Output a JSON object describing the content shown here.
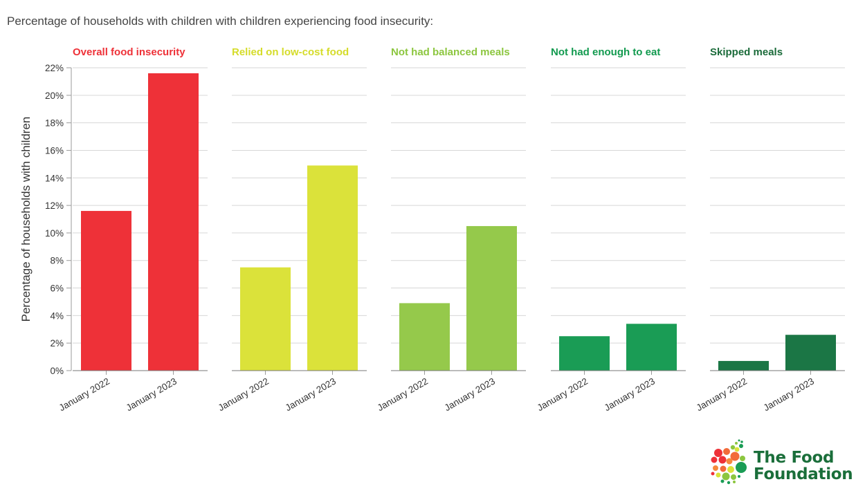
{
  "title": "Percentage of households with children with children experiencing food insecurity:",
  "logo": {
    "line1": "The Food",
    "line2": "Foundation"
  },
  "chart_data": {
    "type": "bar",
    "ylabel": "Percentage of households with children",
    "ylim": [
      0,
      22
    ],
    "yticks": [
      0,
      2,
      4,
      6,
      8,
      10,
      12,
      14,
      16,
      18,
      20,
      22
    ],
    "ytick_labels": [
      "0%",
      "2%",
      "4%",
      "6%",
      "8%",
      "10%",
      "12%",
      "14%",
      "16%",
      "18%",
      "20%",
      "22%"
    ],
    "grid": true,
    "categories": [
      "January 2022",
      "January 2023"
    ],
    "panels": [
      {
        "name": "Overall food insecurity",
        "color": "#ee3138",
        "bar_colors": [
          "#ee3138",
          "#ee3138"
        ],
        "values": [
          11.6,
          21.6
        ]
      },
      {
        "name": "Relied on low-cost food",
        "color": "#d5dc2a",
        "bar_colors": [
          "#dbe23a",
          "#dbe23a"
        ],
        "values": [
          7.5,
          14.9
        ]
      },
      {
        "name": "Not had balanced meals",
        "color": "#8cc63f",
        "bar_colors": [
          "#95c94b",
          "#95c94b"
        ],
        "values": [
          4.9,
          10.5
        ]
      },
      {
        "name": "Not had enough to eat",
        "color": "#129a4f",
        "bar_colors": [
          "#1a9c55",
          "#1a9c55"
        ],
        "values": [
          2.5,
          3.4
        ]
      },
      {
        "name": "Skipped meals",
        "color": "#1b6b3a",
        "bar_colors": [
          "#1b7645",
          "#1b7645"
        ],
        "values": [
          0.7,
          2.6
        ]
      }
    ]
  }
}
